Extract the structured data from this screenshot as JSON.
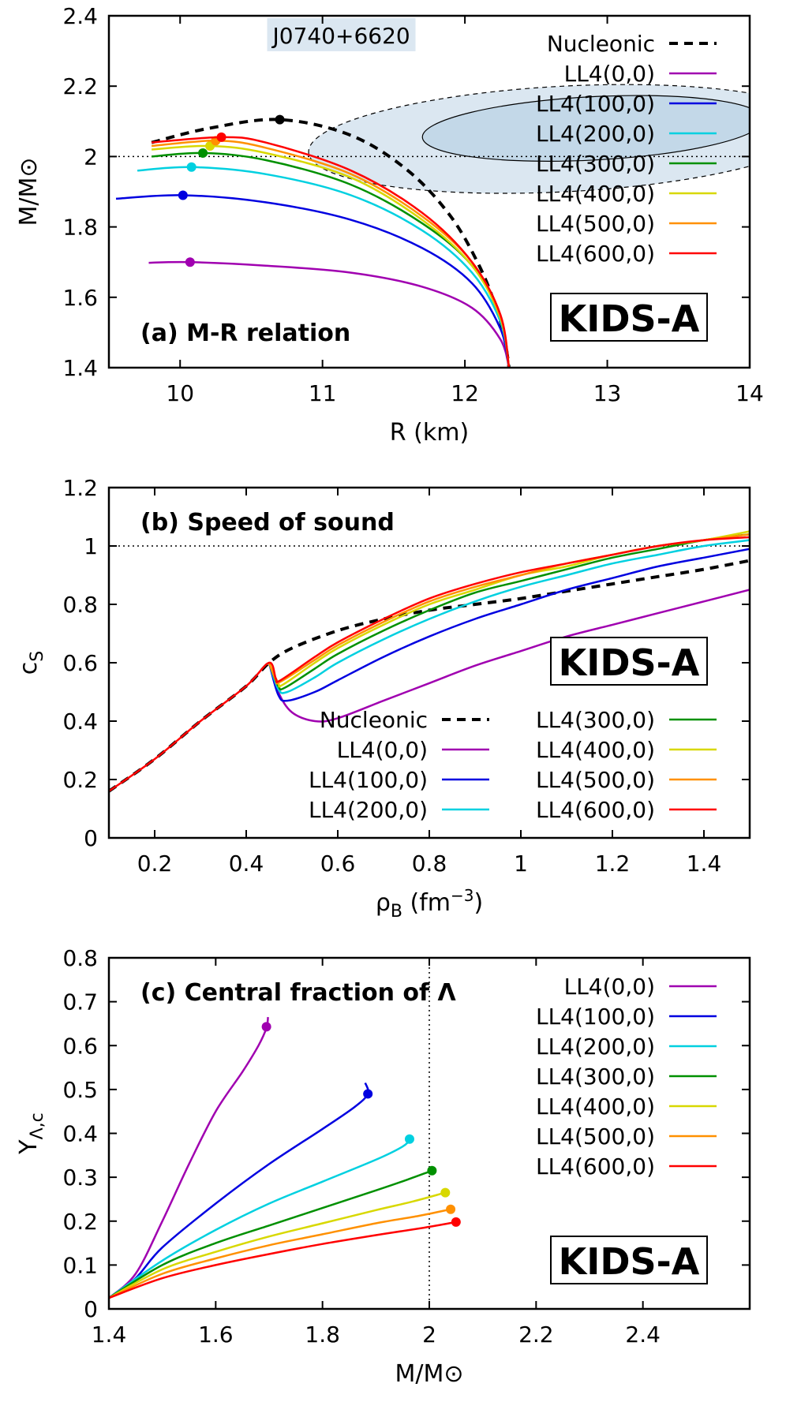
{
  "chart_data": [
    {
      "type": "line",
      "panel": "a",
      "title": "(a) M-R relation",
      "badge": "KIDS-A",
      "xlabel": "R (km)",
      "ylabel": "M/M⊙",
      "xlim": [
        9.5,
        14
      ],
      "ylim": [
        1.4,
        2.4
      ],
      "x_ticks": [
        "10",
        "11",
        "12",
        "13",
        "14"
      ],
      "y_ticks": [
        "1.4",
        "1.6",
        "1.8",
        "2",
        "2.2",
        "2.4"
      ],
      "annotation": "J0740+6620",
      "reference_line_y": 2.0,
      "legend_position": "top-right",
      "series": [
        {
          "name": "Nucleonic",
          "style": "dashed",
          "color": "#000000",
          "x": [
            9.8,
            10.2,
            10.7,
            11.2,
            11.6,
            11.9,
            12.1,
            12.22,
            12.28,
            12.31
          ],
          "y": [
            2.04,
            2.08,
            2.105,
            2.06,
            1.96,
            1.83,
            1.69,
            1.57,
            1.48,
            1.4
          ],
          "max_point": [
            10.7,
            2.105
          ]
        },
        {
          "name": "LL4(0,0)",
          "color": "#a000b0",
          "x": [
            9.78,
            10.07,
            10.6,
            11.2,
            11.7,
            12.05,
            12.25,
            12.31
          ],
          "y": [
            1.698,
            1.7,
            1.69,
            1.67,
            1.63,
            1.57,
            1.48,
            1.4
          ],
          "max_point": [
            10.07,
            1.7
          ]
        },
        {
          "name": "LL4(100,0)",
          "color": "#0000e0",
          "x": [
            9.55,
            10.02,
            10.6,
            11.2,
            11.7,
            12.05,
            12.25,
            12.31
          ],
          "y": [
            1.88,
            1.89,
            1.87,
            1.82,
            1.74,
            1.64,
            1.51,
            1.4
          ],
          "max_point": [
            10.02,
            1.89
          ]
        },
        {
          "name": "LL4(200,0)",
          "color": "#00d0e0",
          "x": [
            9.7,
            10.08,
            10.6,
            11.2,
            11.7,
            12.05,
            12.25,
            12.31
          ],
          "y": [
            1.96,
            1.97,
            1.95,
            1.89,
            1.79,
            1.67,
            1.53,
            1.4
          ],
          "max_point": [
            10.08,
            1.97
          ]
        },
        {
          "name": "LL4(300,0)",
          "color": "#009000",
          "x": [
            9.8,
            10.16,
            10.6,
            11.2,
            11.7,
            12.05,
            12.25,
            12.31
          ],
          "y": [
            2.0,
            2.01,
            1.99,
            1.92,
            1.81,
            1.69,
            1.54,
            1.4
          ],
          "max_point": [
            10.16,
            2.01
          ]
        },
        {
          "name": "LL4(400,0)",
          "color": "#d8d800",
          "x": [
            9.8,
            10.21,
            10.6,
            11.2,
            11.7,
            12.05,
            12.25,
            12.31
          ],
          "y": [
            2.02,
            2.03,
            2.01,
            1.94,
            1.82,
            1.69,
            1.54,
            1.4
          ],
          "max_point": [
            10.21,
            2.03
          ]
        },
        {
          "name": "LL4(500,0)",
          "color": "#ff9000",
          "x": [
            9.8,
            10.25,
            10.6,
            11.2,
            11.7,
            12.05,
            12.25,
            12.31
          ],
          "y": [
            2.03,
            2.045,
            2.025,
            1.95,
            1.83,
            1.7,
            1.545,
            1.4
          ],
          "max_point": [
            10.25,
            2.045
          ]
        },
        {
          "name": "LL4(600,0)",
          "color": "#ff0000",
          "x": [
            9.8,
            10.29,
            10.6,
            11.2,
            11.7,
            12.05,
            12.25,
            12.31
          ],
          "y": [
            2.04,
            2.055,
            2.04,
            1.96,
            1.84,
            1.7,
            1.55,
            1.4
          ],
          "max_point": [
            10.29,
            2.055
          ]
        }
      ]
    },
    {
      "type": "line",
      "panel": "b",
      "title": "(b) Speed of sound",
      "badge": "KIDS-A",
      "xlabel": "ρB (fm⁻³)",
      "ylabel": "cS",
      "xlim": [
        0.1,
        1.5
      ],
      "ylim": [
        0,
        1.2
      ],
      "x_ticks": [
        "0.2",
        "0.4",
        "0.6",
        "0.8",
        "1",
        "1.2",
        "1.4"
      ],
      "y_ticks": [
        "0",
        "0.2",
        "0.4",
        "0.6",
        "0.8",
        "1",
        "1.2"
      ],
      "reference_line_y": 1.0,
      "legend_position": "bottom-right",
      "series": [
        {
          "name": "Nucleonic",
          "style": "dashed",
          "color": "#000000",
          "x": [
            0.1,
            0.2,
            0.3,
            0.4,
            0.45,
            0.5,
            0.6,
            0.7,
            0.8,
            0.9,
            1.0,
            1.1,
            1.2,
            1.3,
            1.4,
            1.5
          ],
          "y": [
            0.16,
            0.27,
            0.4,
            0.52,
            0.6,
            0.65,
            0.71,
            0.75,
            0.78,
            0.8,
            0.82,
            0.845,
            0.87,
            0.895,
            0.92,
            0.95
          ]
        },
        {
          "name": "LL4(0,0)",
          "color": "#a000b0",
          "x": [
            0.45,
            0.47,
            0.5,
            0.55,
            0.6,
            0.7,
            0.8,
            0.9,
            1.0,
            1.1,
            1.2,
            1.3,
            1.4,
            1.5
          ],
          "y": [
            0.6,
            0.5,
            0.43,
            0.4,
            0.41,
            0.47,
            0.53,
            0.59,
            0.64,
            0.69,
            0.73,
            0.77,
            0.81,
            0.85
          ]
        },
        {
          "name": "LL4(100,0)",
          "color": "#0000e0",
          "x": [
            0.45,
            0.47,
            0.49,
            0.55,
            0.6,
            0.7,
            0.8,
            0.9,
            1.0,
            1.1,
            1.2,
            1.3,
            1.4,
            1.5
          ],
          "y": [
            0.6,
            0.49,
            0.47,
            0.5,
            0.54,
            0.62,
            0.69,
            0.75,
            0.8,
            0.85,
            0.89,
            0.93,
            0.96,
            0.99
          ]
        },
        {
          "name": "LL4(200,0)",
          "color": "#00d0e0",
          "x": [
            0.45,
            0.47,
            0.49,
            0.55,
            0.6,
            0.7,
            0.8,
            0.9,
            1.0,
            1.1,
            1.2,
            1.3,
            1.4,
            1.5
          ],
          "y": [
            0.6,
            0.51,
            0.5,
            0.55,
            0.6,
            0.68,
            0.75,
            0.81,
            0.86,
            0.9,
            0.94,
            0.97,
            1.0,
            1.02
          ]
        },
        {
          "name": "LL4(300,0)",
          "color": "#009000",
          "x": [
            0.45,
            0.47,
            0.485,
            0.55,
            0.6,
            0.7,
            0.8,
            0.9,
            1.0,
            1.1,
            1.2,
            1.3,
            1.4,
            1.5
          ],
          "y": [
            0.6,
            0.52,
            0.515,
            0.58,
            0.63,
            0.71,
            0.78,
            0.84,
            0.88,
            0.92,
            0.96,
            0.99,
            1.02,
            1.04
          ]
        },
        {
          "name": "LL4(400,0)",
          "color": "#d8d800",
          "x": [
            0.45,
            0.47,
            0.48,
            0.55,
            0.6,
            0.7,
            0.8,
            0.9,
            1.0,
            1.1,
            1.2,
            1.3,
            1.4,
            1.5
          ],
          "y": [
            0.6,
            0.53,
            0.525,
            0.6,
            0.65,
            0.73,
            0.8,
            0.85,
            0.9,
            0.93,
            0.97,
            1.0,
            1.02,
            1.05
          ]
        },
        {
          "name": "LL4(500,0)",
          "color": "#ff9000",
          "x": [
            0.45,
            0.465,
            0.475,
            0.55,
            0.6,
            0.7,
            0.8,
            0.9,
            1.0,
            1.1,
            1.2,
            1.3,
            1.4,
            1.5
          ],
          "y": [
            0.6,
            0.54,
            0.535,
            0.61,
            0.66,
            0.74,
            0.81,
            0.86,
            0.9,
            0.94,
            0.97,
            1.0,
            1.02,
            1.04
          ]
        },
        {
          "name": "LL4(600,0)",
          "color": "#ff0000",
          "x": [
            0.1,
            0.2,
            0.3,
            0.4,
            0.45,
            0.465,
            0.475,
            0.55,
            0.6,
            0.7,
            0.8,
            0.9,
            1.0,
            1.1,
            1.2,
            1.3,
            1.4,
            1.5
          ],
          "y": [
            0.16,
            0.27,
            0.4,
            0.52,
            0.6,
            0.545,
            0.54,
            0.62,
            0.67,
            0.75,
            0.82,
            0.87,
            0.91,
            0.94,
            0.97,
            1.0,
            1.02,
            1.03
          ]
        }
      ]
    },
    {
      "type": "line",
      "panel": "c",
      "title": "(c) Central fraction of Λ",
      "badge": "KIDS-A",
      "xlabel": "M/M⊙",
      "ylabel": "YΛ,c",
      "xlim": [
        1.4,
        2.6
      ],
      "ylim": [
        0,
        0.8
      ],
      "x_ticks": [
        "1.4",
        "1.6",
        "1.8",
        "2",
        "2.2",
        "2.4"
      ],
      "y_ticks": [
        "0",
        "0.1",
        "0.2",
        "0.3",
        "0.4",
        "0.5",
        "0.6",
        "0.7",
        "0.8"
      ],
      "reference_line_x": 2.0,
      "legend_position": "top-right",
      "series": [
        {
          "name": "LL4(0,0)",
          "color": "#a000b0",
          "x": [
            1.4,
            1.45,
            1.5,
            1.55,
            1.6,
            1.65,
            1.68,
            1.695,
            1.698
          ],
          "y": [
            0.025,
            0.08,
            0.2,
            0.33,
            0.45,
            0.54,
            0.6,
            0.64,
            0.665
          ],
          "max_point": [
            1.695,
            0.643
          ]
        },
        {
          "name": "LL4(100,0)",
          "color": "#0000e0",
          "x": [
            1.4,
            1.45,
            1.5,
            1.6,
            1.7,
            1.8,
            1.86,
            1.885,
            1.88
          ],
          "y": [
            0.025,
            0.07,
            0.14,
            0.24,
            0.33,
            0.41,
            0.46,
            0.49,
            0.515
          ],
          "max_point": [
            1.885,
            0.49
          ]
        },
        {
          "name": "LL4(200,0)",
          "color": "#00d0e0",
          "x": [
            1.4,
            1.5,
            1.6,
            1.7,
            1.8,
            1.9,
            1.95,
            1.965,
            1.96
          ],
          "y": [
            0.025,
            0.11,
            0.18,
            0.24,
            0.29,
            0.34,
            0.37,
            0.388,
            0.395
          ],
          "max_point": [
            1.963,
            0.387
          ]
        },
        {
          "name": "LL4(300,0)",
          "color": "#009000",
          "x": [
            1.4,
            1.5,
            1.6,
            1.7,
            1.8,
            1.9,
            1.96,
            2.005
          ],
          "y": [
            0.025,
            0.1,
            0.15,
            0.19,
            0.23,
            0.27,
            0.295,
            0.315
          ],
          "max_point": [
            2.005,
            0.315
          ]
        },
        {
          "name": "LL4(400,0)",
          "color": "#d8d800",
          "x": [
            1.4,
            1.5,
            1.6,
            1.7,
            1.8,
            1.9,
            1.97,
            2.03
          ],
          "y": [
            0.025,
            0.09,
            0.13,
            0.165,
            0.195,
            0.225,
            0.245,
            0.265
          ],
          "max_point": [
            2.03,
            0.265
          ]
        },
        {
          "name": "LL4(500,0)",
          "color": "#ff9000",
          "x": [
            1.4,
            1.5,
            1.6,
            1.7,
            1.8,
            1.9,
            1.98,
            2.04
          ],
          "y": [
            0.025,
            0.08,
            0.115,
            0.145,
            0.17,
            0.195,
            0.212,
            0.227
          ],
          "max_point": [
            2.04,
            0.227
          ]
        },
        {
          "name": "LL4(600,0)",
          "color": "#ff0000",
          "x": [
            1.4,
            1.5,
            1.6,
            1.7,
            1.8,
            1.9,
            1.99,
            2.05
          ],
          "y": [
            0.025,
            0.07,
            0.1,
            0.125,
            0.148,
            0.168,
            0.185,
            0.198
          ],
          "max_point": [
            2.05,
            0.198
          ]
        }
      ]
    }
  ]
}
